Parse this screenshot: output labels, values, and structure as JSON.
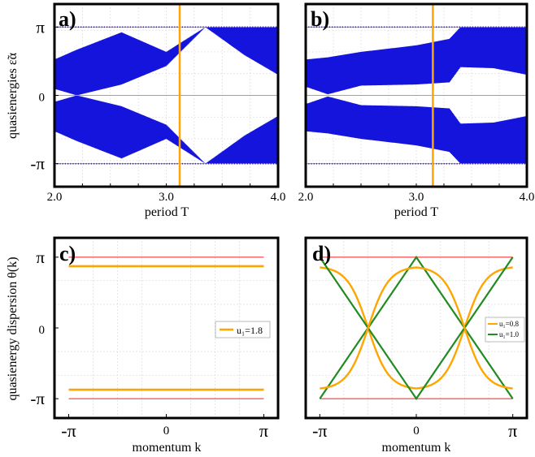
{
  "chart_data": [
    {
      "panel_label": "a)",
      "type": "area",
      "xlabel": "period T",
      "ylabel": "quasienergies ε̃α",
      "xlim": [
        2.0,
        4.0
      ],
      "ylim": [
        -4.2,
        4.2
      ],
      "x_tick_labels": [
        "2.0",
        "3.0",
        "4.0"
      ],
      "y_tick_labels": [
        "π",
        "0",
        "-π"
      ],
      "vertical_marker_T": 3.12,
      "band_envelope": {
        "x": [
          2.0,
          2.2,
          2.6,
          3.0,
          3.35,
          3.7,
          4.0
        ],
        "upper": [
          1.65,
          2.1,
          2.9,
          2.0,
          3.14,
          3.14,
          3.14
        ],
        "lower": [
          0.3,
          0.0,
          0.5,
          1.35,
          3.14,
          1.85,
          0.95
        ]
      },
      "band_style": "mirrored_about_zero",
      "reference_lines_y": [
        3.14159,
        0,
        -3.14159
      ]
    },
    {
      "panel_label": "b)",
      "type": "area",
      "xlabel": "period T",
      "xlim": [
        2.0,
        4.0
      ],
      "ylim": [
        -4.2,
        4.2
      ],
      "x_tick_labels": [
        "2.0",
        "3.0",
        "4.0"
      ],
      "vertical_marker_T": 3.15,
      "band_envelope": {
        "x": [
          2.0,
          2.2,
          2.5,
          3.0,
          3.3,
          3.4,
          3.7,
          4.0
        ],
        "upper": [
          1.65,
          1.75,
          2.0,
          2.3,
          2.6,
          3.14,
          3.14,
          3.14
        ],
        "lower": [
          0.4,
          0.05,
          0.45,
          0.5,
          0.6,
          1.3,
          1.25,
          0.95
        ]
      },
      "band_style": "mirrored_about_zero",
      "reference_lines_y": [
        3.14159,
        0,
        -3.14159
      ]
    },
    {
      "panel_label": "c)",
      "type": "line",
      "xlabel": "momentum k",
      "ylabel": "quasienergy dispersion θ(k)",
      "xlim": [
        -3.6,
        3.6
      ],
      "ylim": [
        -4.0,
        4.0
      ],
      "x_tick_labels": [
        "-π",
        "0",
        "π"
      ],
      "y_tick_labels": [
        "π",
        "0",
        "-π"
      ],
      "legend": [
        "u₁=1.8"
      ],
      "legend_position": "center-right",
      "series": [
        {
          "name": "u₁=1.8",
          "color": "#ffa500",
          "x": [
            -3.14159,
            3.14159
          ],
          "y_upper": 2.74,
          "y_lower": -2.74
        }
      ],
      "reference_lines_y": [
        3.14159,
        -3.14159
      ]
    },
    {
      "panel_label": "d)",
      "type": "line",
      "xlabel": "momentum k",
      "xlim": [
        -3.6,
        3.6
      ],
      "ylim": [
        -4.0,
        4.0
      ],
      "x_tick_labels": [
        "-π",
        "0",
        "π"
      ],
      "legend": [
        "u₁=0.8",
        "u₁=1.0"
      ],
      "legend_position": "center-right",
      "series": [
        {
          "name": "u₁=0.8",
          "color": "#ffa500",
          "x": [
            -3.14,
            -1.57,
            0,
            1.57,
            3.14
          ],
          "y": [
            2.74,
            0.0,
            -2.74,
            0.0,
            2.74
          ]
        },
        {
          "name": "u₁=1.0",
          "color": "#228b22",
          "x": [
            -3.14,
            -1.57,
            0,
            1.57,
            3.14
          ],
          "y": [
            3.14,
            0.0,
            -3.14,
            0.0,
            3.14
          ]
        }
      ],
      "reference_lines_y": [
        3.14159,
        -3.14159
      ]
    }
  ]
}
